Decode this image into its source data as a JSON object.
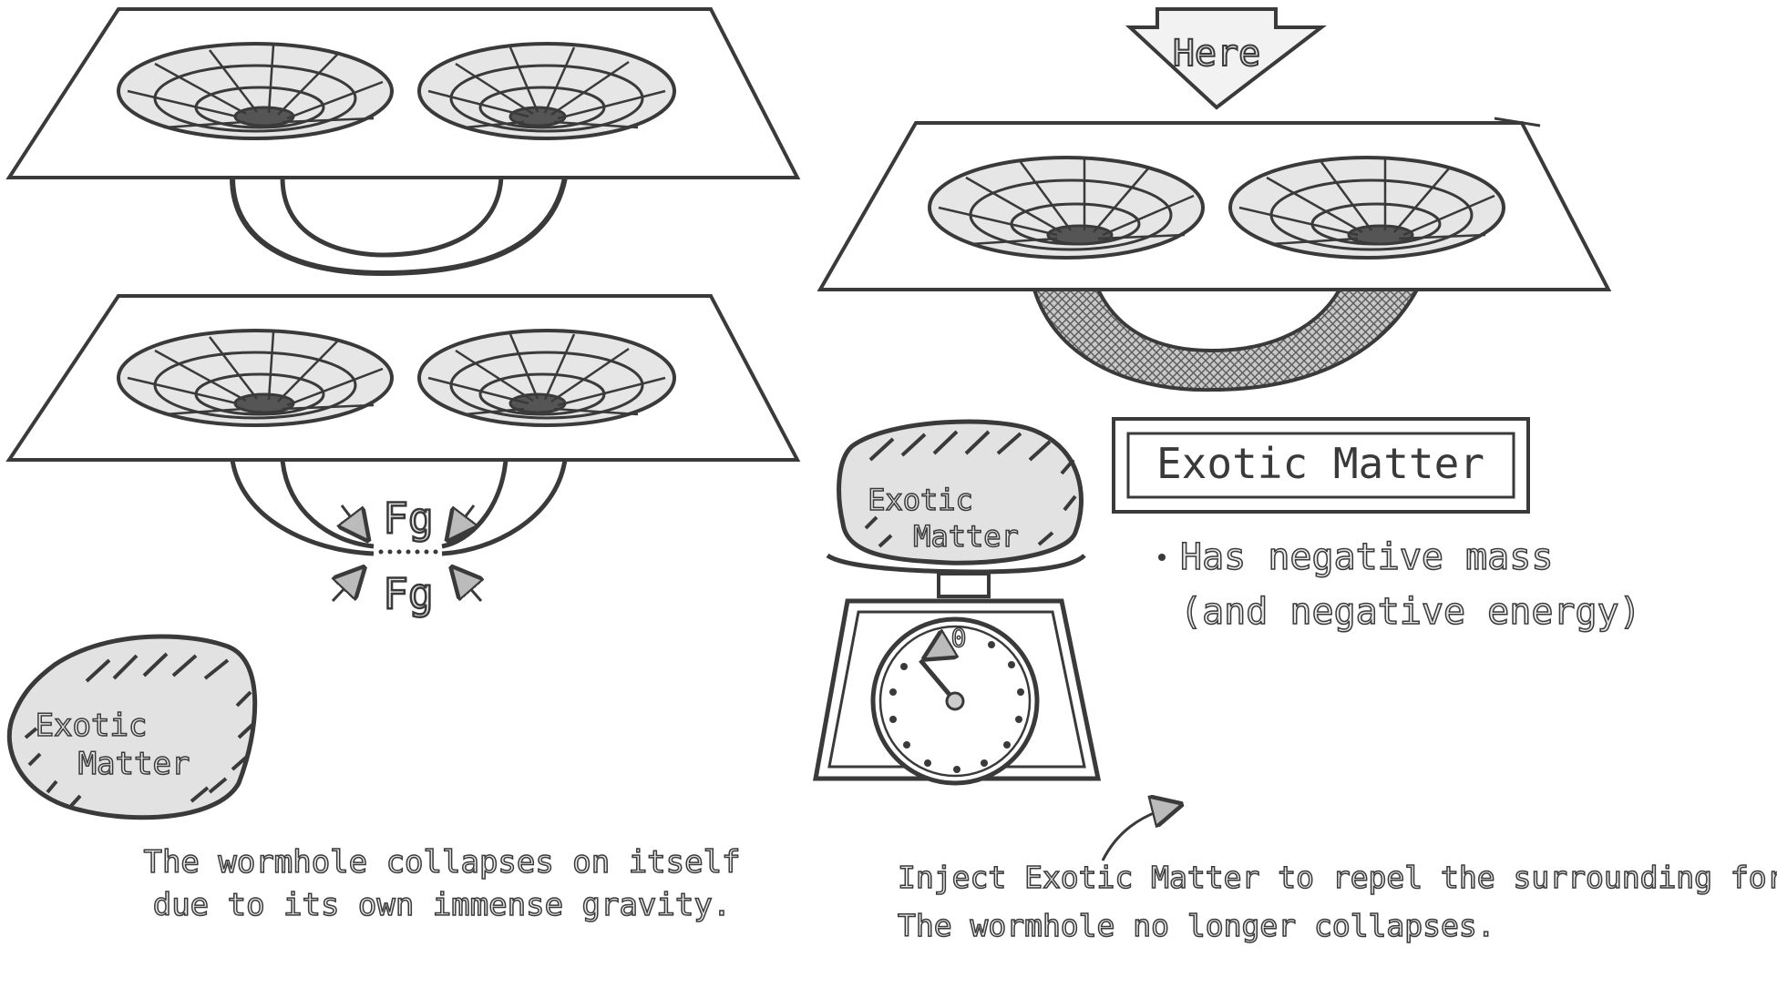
{
  "panels": {
    "collapse": {
      "force_label_top": "Fg",
      "force_label_bottom": "Fg",
      "exotic_blob_label_line1": "Exotic",
      "exotic_blob_label_line2": "Matter",
      "caption_line1": "The wormhole collapses on itself",
      "caption_line2": "due to its own immense gravity."
    },
    "stabilized": {
      "here_arrow_label": "Here",
      "box_title": "Exotic Matter",
      "bullet_line1": "Has negative mass",
      "bullet_line2": "(and negative energy)",
      "scale_label_line1": "Exotic",
      "scale_label_line2": "Matter",
      "scale_dial_value": "0",
      "caption_line1": "Inject Exotic Matter to repel the surrounding force.",
      "caption_line2": "The wormhole no longer collapses."
    }
  },
  "colors": {
    "ink": "#3a3a3a",
    "fill_light": "#d9d9d9",
    "fill_mid": "#bdbdbd",
    "paper": "#ffffff"
  }
}
